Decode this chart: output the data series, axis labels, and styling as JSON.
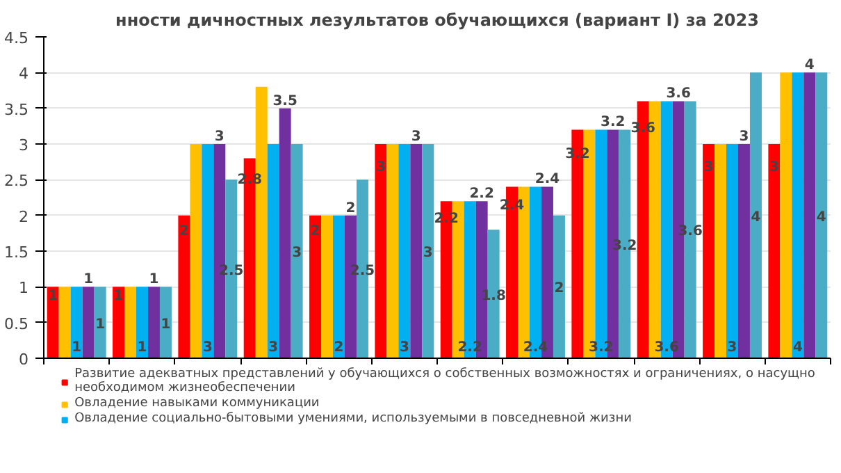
{
  "chart_data": {
    "type": "bar",
    "title": "нности дичностных лезультатов обучающихся (вариант I) за 2023",
    "categories": [
      null,
      null,
      null,
      null,
      null,
      null,
      null,
      null,
      null,
      null,
      null,
      null
    ],
    "series": [
      {
        "name": "Развитие адекватных представлений у обучающихся о собственных возможностях и ограничениях, о насущно необходимом жизнеобеспечении",
        "color": "#ff0000",
        "values": [
          1,
          1,
          2,
          2.8,
          2,
          3,
          2.2,
          2.4,
          3.2,
          3.6,
          3,
          3
        ],
        "value_labels": [
          "1",
          "1",
          "2",
          "2.8",
          "2",
          "3",
          "2.2",
          "2.4",
          "3.2",
          "3.6",
          "3",
          "3"
        ]
      },
      {
        "name": "Овладение навыками коммуникации",
        "color": "#ffc000",
        "values": [
          1,
          1,
          3,
          3.8,
          2,
          3,
          2.2,
          2.4,
          3.2,
          3.6,
          3,
          4
        ]
      },
      {
        "name": "Овладение социально-бытовыми умениями, используемыми в повседневной жизни",
        "color": "#00b0f0",
        "values": [
          1,
          1,
          3,
          3,
          2,
          3,
          2.2,
          2.4,
          3.2,
          3.6,
          3,
          4
        ],
        "value_labels": [
          "1",
          "1",
          "3",
          "3",
          "2",
          "3",
          "2.2",
          "2.4",
          "3.2",
          "3.6",
          "3",
          "4"
        ]
      },
      {
        "color": "#7030a0",
        "values": [
          1,
          1,
          3,
          3.5,
          2,
          3,
          2.2,
          2.4,
          3.2,
          3.6,
          3,
          4
        ],
        "value_labels": [
          "1",
          "1",
          "3",
          "3.5",
          "2",
          "3",
          "2.2",
          "2.4",
          "3.2",
          "3.6",
          "3",
          "4"
        ]
      },
      {
        "color": "#4bacc6",
        "values": [
          1,
          1,
          2.5,
          3,
          2.5,
          3,
          1.8,
          2,
          3.2,
          3.6,
          4,
          4
        ],
        "value_labels": [
          "1",
          "1",
          "2.5",
          "3",
          "2.5",
          "3",
          "1.8",
          "2",
          "3.2",
          "3.6",
          "4",
          "4"
        ]
      }
    ],
    "ylim": [
      0,
      4.5
    ],
    "yticks": [
      0,
      0.5,
      1,
      1.5,
      2,
      2.5,
      3,
      3.5,
      4,
      4.5
    ],
    "grid": "y",
    "legend": "bottom"
  }
}
